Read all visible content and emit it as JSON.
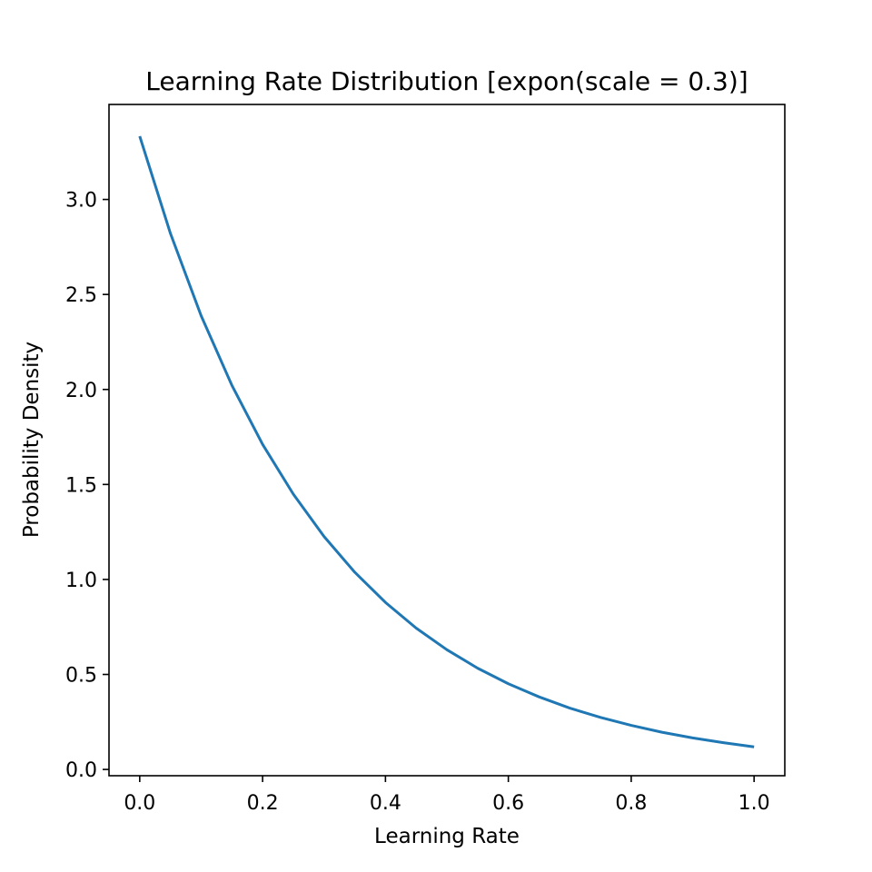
{
  "chart_data": {
    "type": "line",
    "title": "Learning Rate Distribution [expon(scale = 0.3)]",
    "xlabel": "Learning Rate",
    "ylabel": "Probability Density",
    "xlim": [
      -0.05,
      1.05
    ],
    "ylim": [
      -0.033,
      3.5
    ],
    "grid": false,
    "x_ticks": [
      0.0,
      0.2,
      0.4,
      0.6,
      0.8,
      1.0
    ],
    "x_tick_labels": [
      "0.0",
      "0.2",
      "0.4",
      "0.6",
      "0.8",
      "1.0"
    ],
    "y_ticks": [
      0.0,
      0.5,
      1.0,
      1.5,
      2.0,
      2.5,
      3.0
    ],
    "y_tick_labels": [
      "0.0",
      "0.5",
      "1.0",
      "1.5",
      "2.0",
      "2.5",
      "3.0"
    ],
    "series": [
      {
        "color": "#1f77b4",
        "x": [
          0.0,
          0.05,
          0.1,
          0.15,
          0.2,
          0.25,
          0.3,
          0.35,
          0.4,
          0.45,
          0.5,
          0.55,
          0.6,
          0.65,
          0.7,
          0.75,
          0.8,
          0.85,
          0.9,
          0.95,
          1.0
        ],
        "y": [
          3.333,
          2.821,
          2.388,
          2.022,
          1.711,
          1.449,
          1.226,
          1.038,
          0.879,
          0.744,
          0.63,
          0.533,
          0.451,
          0.382,
          0.323,
          0.274,
          0.232,
          0.196,
          0.166,
          0.141,
          0.119
        ]
      }
    ]
  }
}
